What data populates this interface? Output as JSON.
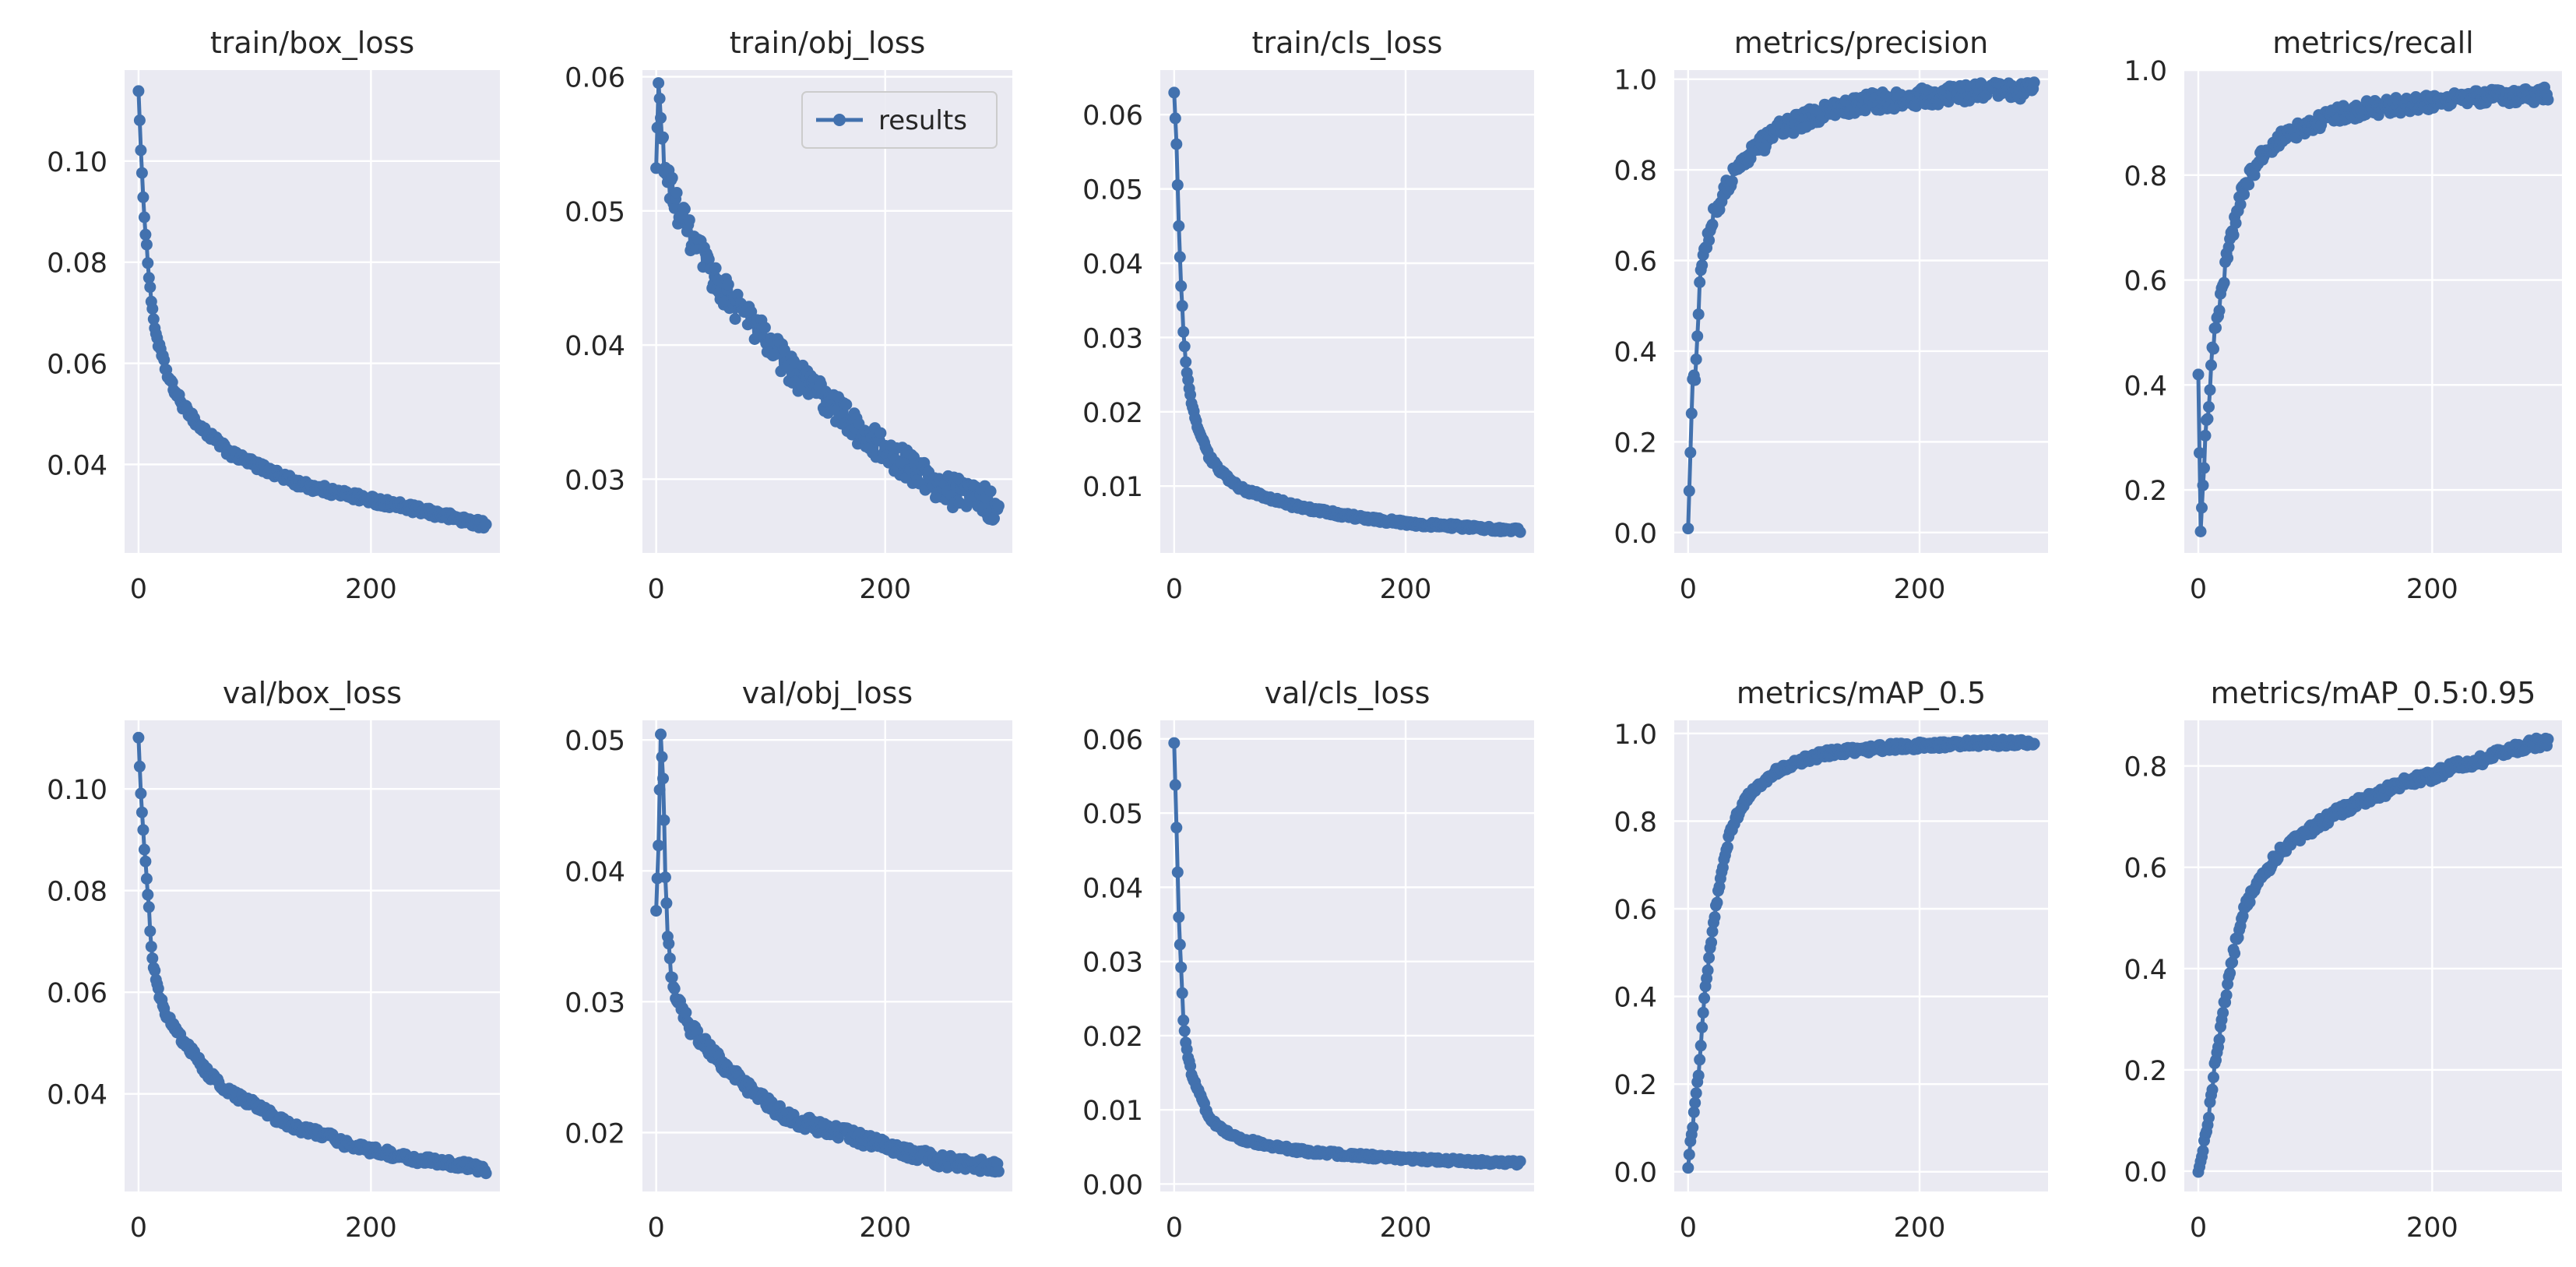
{
  "figure": {
    "series_name": "results"
  },
  "style": {
    "line_color": "#4271ae",
    "plot_bg": "#eaeaf2",
    "grid_color": "#ffffff",
    "text_color": "#262626"
  },
  "chart_data": [
    {
      "type": "line",
      "title": "train/box_loss",
      "x_ticks": [
        0,
        200
      ],
      "y_ticks": [
        0.04,
        0.06,
        0.08,
        0.1
      ],
      "y_tick_labels": [
        "0.04",
        "0.06",
        "0.08",
        "0.10"
      ],
      "xlim": [
        -12,
        311
      ],
      "ylim": [
        0.0225,
        0.118
      ],
      "x": [
        0,
        2,
        4,
        6,
        8,
        10,
        12,
        15,
        18,
        22,
        26,
        30,
        35,
        40,
        45,
        50,
        60,
        70,
        80,
        90,
        100,
        120,
        140,
        160,
        180,
        200,
        220,
        240,
        260,
        280,
        299
      ],
      "values": [
        0.114,
        0.102,
        0.093,
        0.086,
        0.08,
        0.075,
        0.07,
        0.066,
        0.063,
        0.06,
        0.057,
        0.055,
        0.053,
        0.051,
        0.05,
        0.048,
        0.046,
        0.044,
        0.042,
        0.041,
        0.04,
        0.038,
        0.036,
        0.035,
        0.034,
        0.033,
        0.032,
        0.031,
        0.03,
        0.029,
        0.028
      ],
      "noise": 0.0008,
      "legend": false
    },
    {
      "type": "line",
      "title": "train/obj_loss",
      "x_ticks": [
        0,
        200
      ],
      "y_ticks": [
        0.03,
        0.04,
        0.05,
        0.06
      ],
      "y_tick_labels": [
        "0.03",
        "0.04",
        "0.05",
        "0.06"
      ],
      "xlim": [
        -12,
        311
      ],
      "ylim": [
        0.0245,
        0.0605
      ],
      "x": [
        0,
        2,
        4,
        6,
        8,
        10,
        15,
        20,
        30,
        40,
        50,
        60,
        80,
        100,
        120,
        140,
        160,
        180,
        200,
        220,
        240,
        260,
        280,
        299
      ],
      "values": [
        0.053,
        0.0595,
        0.057,
        0.0545,
        0.053,
        0.0525,
        0.051,
        0.05,
        0.048,
        0.0465,
        0.045,
        0.044,
        0.042,
        0.04,
        0.038,
        0.0365,
        0.035,
        0.0335,
        0.032,
        0.031,
        0.03,
        0.029,
        0.0285,
        0.028
      ],
      "noise": 0.0012,
      "legend": true
    },
    {
      "type": "line",
      "title": "train/cls_loss",
      "x_ticks": [
        0,
        200
      ],
      "y_ticks": [
        0.01,
        0.02,
        0.03,
        0.04,
        0.05,
        0.06
      ],
      "y_tick_labels": [
        "0.01",
        "0.02",
        "0.03",
        "0.04",
        "0.05",
        "0.06"
      ],
      "xlim": [
        -12,
        311
      ],
      "ylim": [
        0.001,
        0.066
      ],
      "x": [
        0,
        2,
        4,
        6,
        8,
        10,
        12,
        15,
        20,
        25,
        30,
        40,
        50,
        60,
        80,
        100,
        120,
        150,
        180,
        200,
        230,
        260,
        299
      ],
      "values": [
        0.063,
        0.056,
        0.045,
        0.037,
        0.031,
        0.027,
        0.024,
        0.021,
        0.018,
        0.016,
        0.014,
        0.012,
        0.0105,
        0.0095,
        0.0085,
        0.0075,
        0.0068,
        0.006,
        0.0054,
        0.005,
        0.0047,
        0.0044,
        0.004
      ],
      "noise": 0.0003,
      "legend": false
    },
    {
      "type": "line",
      "title": "metrics/precision",
      "x_ticks": [
        0,
        200
      ],
      "y_ticks": [
        0.0,
        0.2,
        0.4,
        0.6,
        0.8,
        1.0
      ],
      "y_tick_labels": [
        "0.0",
        "0.2",
        "0.4",
        "0.6",
        "0.8",
        "1.0"
      ],
      "xlim": [
        -12,
        311
      ],
      "ylim": [
        -0.045,
        1.02
      ],
      "x": [
        0,
        2,
        4,
        6,
        8,
        10,
        12,
        15,
        20,
        25,
        30,
        35,
        40,
        50,
        60,
        70,
        80,
        90,
        100,
        120,
        140,
        160,
        180,
        200,
        220,
        240,
        260,
        280,
        299
      ],
      "values": [
        0.005,
        0.18,
        0.34,
        0.35,
        0.45,
        0.55,
        0.6,
        0.63,
        0.68,
        0.72,
        0.75,
        0.77,
        0.79,
        0.83,
        0.85,
        0.87,
        0.89,
        0.9,
        0.91,
        0.93,
        0.94,
        0.95,
        0.955,
        0.96,
        0.965,
        0.97,
        0.972,
        0.975,
        0.977
      ],
      "noise": 0.02,
      "legend": false
    },
    {
      "type": "line",
      "title": "metrics/recall",
      "x_ticks": [
        0,
        200
      ],
      "y_ticks": [
        0.2,
        0.4,
        0.6,
        0.8,
        1.0
      ],
      "y_tick_labels": [
        "0.2",
        "0.4",
        "0.6",
        "0.8",
        "1.0"
      ],
      "xlim": [
        -12,
        311
      ],
      "ylim": [
        0.08,
        1.0
      ],
      "x": [
        0,
        2,
        4,
        6,
        8,
        10,
        12,
        15,
        20,
        25,
        30,
        35,
        40,
        50,
        60,
        70,
        80,
        100,
        120,
        140,
        160,
        180,
        200,
        220,
        240,
        260,
        280,
        299
      ],
      "values": [
        0.42,
        0.12,
        0.21,
        0.3,
        0.34,
        0.4,
        0.46,
        0.52,
        0.58,
        0.65,
        0.7,
        0.75,
        0.78,
        0.82,
        0.85,
        0.87,
        0.88,
        0.9,
        0.915,
        0.925,
        0.93,
        0.935,
        0.94,
        0.945,
        0.948,
        0.95,
        0.952,
        0.955
      ],
      "noise": 0.015,
      "legend": false
    },
    {
      "type": "line",
      "title": "val/box_loss",
      "x_ticks": [
        0,
        200
      ],
      "y_ticks": [
        0.04,
        0.06,
        0.08,
        0.1
      ],
      "y_tick_labels": [
        "0.04",
        "0.06",
        "0.08",
        "0.10"
      ],
      "xlim": [
        -12,
        311
      ],
      "ylim": [
        0.0208,
        0.1135
      ],
      "x": [
        0,
        2,
        4,
        6,
        8,
        10,
        12,
        15,
        20,
        25,
        30,
        40,
        50,
        60,
        70,
        80,
        90,
        100,
        120,
        140,
        160,
        180,
        200,
        220,
        240,
        260,
        280,
        299
      ],
      "values": [
        0.11,
        0.099,
        0.092,
        0.085,
        0.08,
        0.072,
        0.067,
        0.062,
        0.058,
        0.055,
        0.053,
        0.05,
        0.047,
        0.044,
        0.042,
        0.04,
        0.039,
        0.038,
        0.035,
        0.033,
        0.032,
        0.03,
        0.029,
        0.028,
        0.027,
        0.0265,
        0.026,
        0.025
      ],
      "noise": 0.0008,
      "legend": false
    },
    {
      "type": "line",
      "title": "val/obj_loss",
      "x_ticks": [
        0,
        200
      ],
      "y_ticks": [
        0.02,
        0.03,
        0.04,
        0.05
      ],
      "y_tick_labels": [
        "0.02",
        "0.03",
        "0.04",
        "0.05"
      ],
      "xlim": [
        -12,
        311
      ],
      "ylim": [
        0.0155,
        0.0515
      ],
      "x": [
        0,
        2,
        4,
        6,
        8,
        10,
        12,
        15,
        20,
        30,
        40,
        50,
        60,
        80,
        100,
        120,
        140,
        160,
        180,
        200,
        220,
        240,
        260,
        280,
        299
      ],
      "values": [
        0.037,
        0.042,
        0.0505,
        0.047,
        0.04,
        0.035,
        0.033,
        0.031,
        0.03,
        0.028,
        0.027,
        0.026,
        0.025,
        0.0235,
        0.022,
        0.021,
        0.0205,
        0.02,
        0.0195,
        0.019,
        0.0185,
        0.018,
        0.0177,
        0.0175,
        0.0173
      ],
      "noise": 0.0005,
      "legend": false
    },
    {
      "type": "line",
      "title": "val/cls_loss",
      "x_ticks": [
        0,
        200
      ],
      "y_ticks": [
        0.0,
        0.01,
        0.02,
        0.03,
        0.04,
        0.05,
        0.06
      ],
      "y_tick_labels": [
        "0.00",
        "0.01",
        "0.02",
        "0.03",
        "0.04",
        "0.05",
        "0.06"
      ],
      "xlim": [
        -12,
        311
      ],
      "ylim": [
        -0.001,
        0.0625
      ],
      "x": [
        0,
        2,
        4,
        6,
        8,
        10,
        12,
        15,
        20,
        25,
        30,
        40,
        50,
        60,
        80,
        100,
        120,
        150,
        180,
        200,
        230,
        260,
        299
      ],
      "values": [
        0.0595,
        0.048,
        0.036,
        0.029,
        0.022,
        0.019,
        0.017,
        0.015,
        0.013,
        0.011,
        0.009,
        0.0075,
        0.0065,
        0.006,
        0.0052,
        0.0047,
        0.0043,
        0.0039,
        0.0036,
        0.0034,
        0.0032,
        0.003,
        0.0028
      ],
      "noise": 0.0003,
      "legend": false
    },
    {
      "type": "line",
      "title": "metrics/mAP_0.5",
      "x_ticks": [
        0,
        200
      ],
      "y_ticks": [
        0.0,
        0.2,
        0.4,
        0.6,
        0.8,
        1.0
      ],
      "y_tick_labels": [
        "0.0",
        "0.2",
        "0.4",
        "0.6",
        "0.8",
        "1.0"
      ],
      "xlim": [
        -12,
        311
      ],
      "ylim": [
        -0.045,
        1.03
      ],
      "x": [
        0,
        2,
        4,
        6,
        8,
        10,
        12,
        15,
        20,
        25,
        30,
        35,
        40,
        50,
        60,
        70,
        80,
        90,
        100,
        120,
        140,
        160,
        180,
        200,
        220,
        240,
        260,
        280,
        299
      ],
      "values": [
        0.01,
        0.07,
        0.1,
        0.16,
        0.2,
        0.25,
        0.33,
        0.42,
        0.53,
        0.62,
        0.7,
        0.76,
        0.8,
        0.85,
        0.88,
        0.9,
        0.92,
        0.93,
        0.94,
        0.955,
        0.96,
        0.965,
        0.97,
        0.972,
        0.975,
        0.977,
        0.978,
        0.979,
        0.98
      ],
      "noise": 0.008,
      "legend": false
    },
    {
      "type": "line",
      "title": "metrics/mAP_0.5:0.95",
      "x_ticks": [
        0,
        200
      ],
      "y_ticks": [
        0.0,
        0.2,
        0.4,
        0.6,
        0.8
      ],
      "y_tick_labels": [
        "0.0",
        "0.2",
        "0.4",
        "0.6",
        "0.8"
      ],
      "xlim": [
        -12,
        311
      ],
      "ylim": [
        -0.04,
        0.89
      ],
      "x": [
        0,
        2,
        4,
        6,
        8,
        10,
        12,
        15,
        20,
        25,
        30,
        35,
        40,
        50,
        60,
        70,
        80,
        100,
        120,
        140,
        160,
        180,
        200,
        220,
        240,
        260,
        280,
        299
      ],
      "values": [
        0.0,
        0.02,
        0.04,
        0.07,
        0.1,
        0.13,
        0.17,
        0.22,
        0.3,
        0.37,
        0.43,
        0.48,
        0.52,
        0.57,
        0.6,
        0.63,
        0.65,
        0.68,
        0.71,
        0.73,
        0.75,
        0.77,
        0.78,
        0.8,
        0.81,
        0.825,
        0.84,
        0.85
      ],
      "noise": 0.01,
      "legend": false
    }
  ]
}
